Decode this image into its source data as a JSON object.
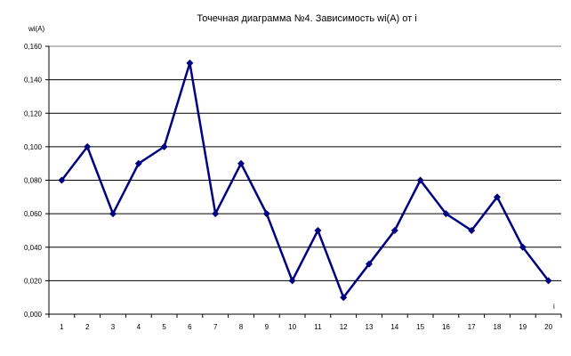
{
  "chart_data": {
    "type": "line",
    "title": "Точечная диаграмма №4. Зависимость wi(A) от i",
    "xlabel": "i",
    "ylabel": "wi(A)",
    "categories": [
      "1",
      "2",
      "3",
      "4",
      "5",
      "6",
      "7",
      "8",
      "9",
      "10",
      "11",
      "12",
      "13",
      "14",
      "15",
      "16",
      "17",
      "18",
      "19",
      "20"
    ],
    "series": [
      {
        "name": "wi(A)",
        "color": "#000080",
        "values": [
          0.08,
          0.1,
          0.06,
          0.09,
          0.1,
          0.15,
          0.06,
          0.09,
          0.06,
          0.02,
          0.05,
          0.01,
          0.03,
          0.05,
          0.08,
          0.06,
          0.05,
          0.07,
          0.04,
          0.02
        ]
      }
    ],
    "ylim": [
      0,
      0.16
    ],
    "yticks": [
      "0,000",
      "0,020",
      "0,040",
      "0,060",
      "0,080",
      "0,100",
      "0,120",
      "0,140",
      "0,160"
    ],
    "grid": true,
    "legend": "none"
  }
}
